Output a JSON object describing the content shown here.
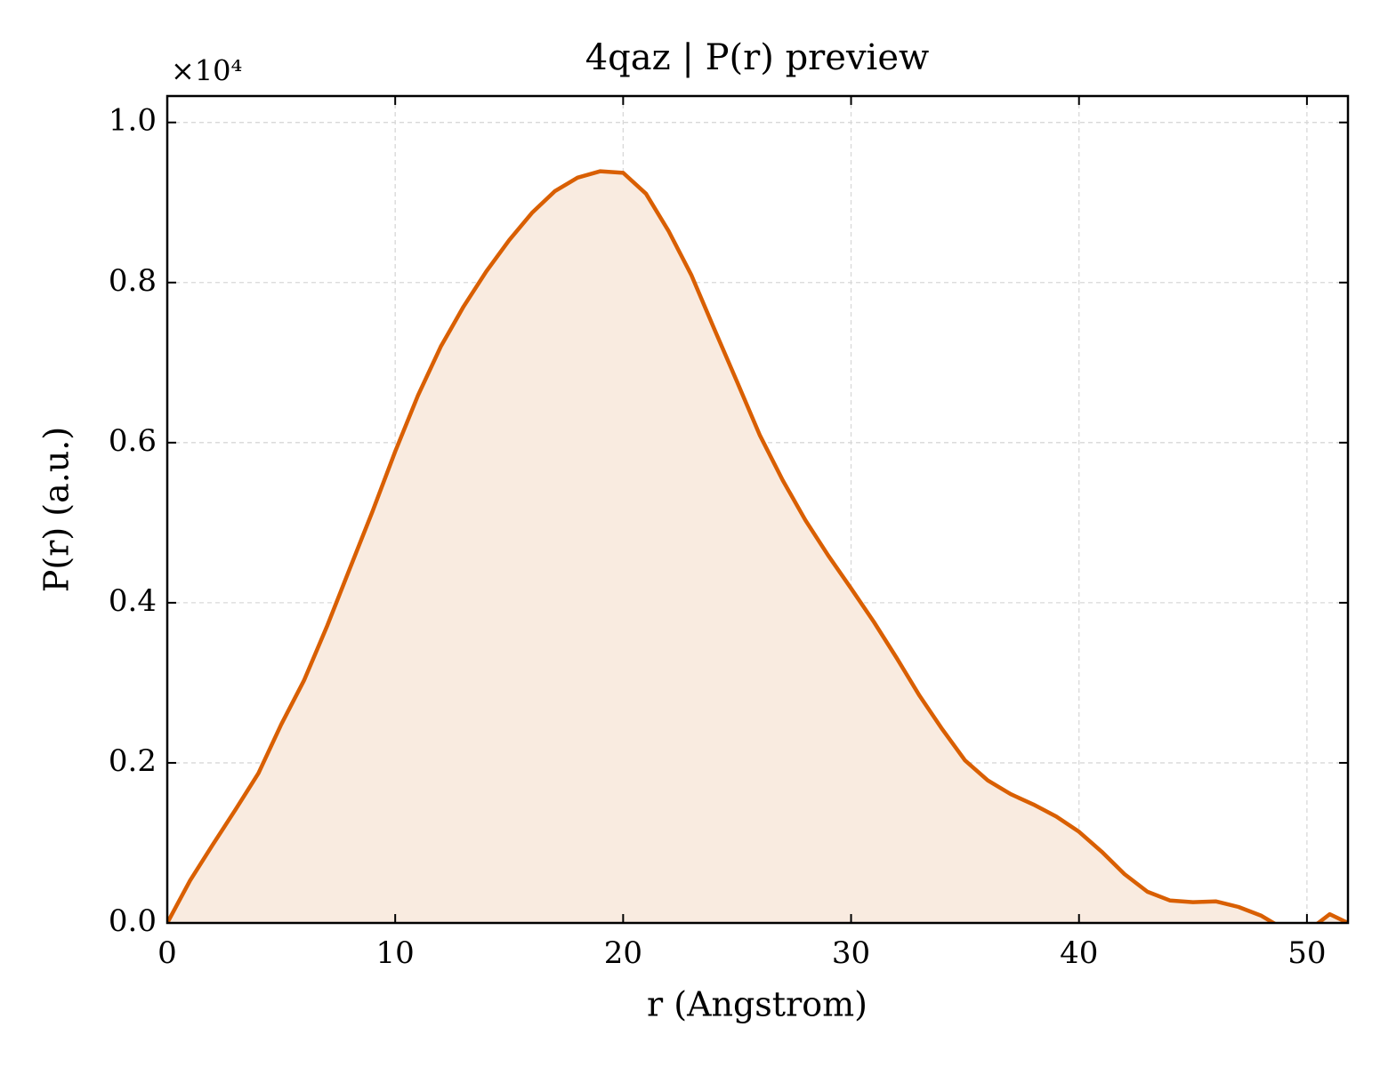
{
  "chart_data": {
    "type": "line",
    "title": "4qaz | P(r) preview",
    "xlabel": "r (Angstrom)",
    "ylabel": "P(r) (a.u.)",
    "y_offset_label": "×10⁴",
    "x": [
      0,
      1,
      2,
      3,
      4,
      5,
      6,
      7,
      8,
      9,
      10,
      11,
      12,
      13,
      14,
      15,
      16,
      17,
      18,
      19,
      20,
      21,
      22,
      23,
      24,
      25,
      26,
      27,
      28,
      29,
      30,
      31,
      32,
      33,
      34,
      35,
      36,
      37,
      38,
      39,
      40,
      41,
      42,
      43,
      44,
      45,
      46,
      47,
      48,
      49,
      50,
      51,
      51.8
    ],
    "values": [
      0,
      0.053,
      0.098,
      0.142,
      0.187,
      0.248,
      0.303,
      0.37,
      0.442,
      0.514,
      0.589,
      0.659,
      0.72,
      0.77,
      0.814,
      0.853,
      0.887,
      0.914,
      0.931,
      0.939,
      0.937,
      0.911,
      0.864,
      0.809,
      0.742,
      0.676,
      0.609,
      0.553,
      0.503,
      0.459,
      0.418,
      0.376,
      0.331,
      0.284,
      0.242,
      0.203,
      0.178,
      0.161,
      0.148,
      0.133,
      0.114,
      0.089,
      0.061,
      0.039,
      0.028,
      0.026,
      0.027,
      0.02,
      0.009,
      -0.008,
      -0.011,
      0.011,
      0
    ],
    "color": "#d95f02",
    "fill_color": "#f9ebe0",
    "xlim": [
      0,
      51.8
    ],
    "ylim": [
      0,
      1.033
    ],
    "xticks": [
      0,
      10,
      20,
      30,
      40,
      50
    ],
    "yticks": [
      {
        "value": 0,
        "label": "0.0"
      },
      0.2,
      0.4,
      0.6,
      0.8,
      {
        "value": 1,
        "label": "1.0"
      }
    ],
    "grid": true
  }
}
